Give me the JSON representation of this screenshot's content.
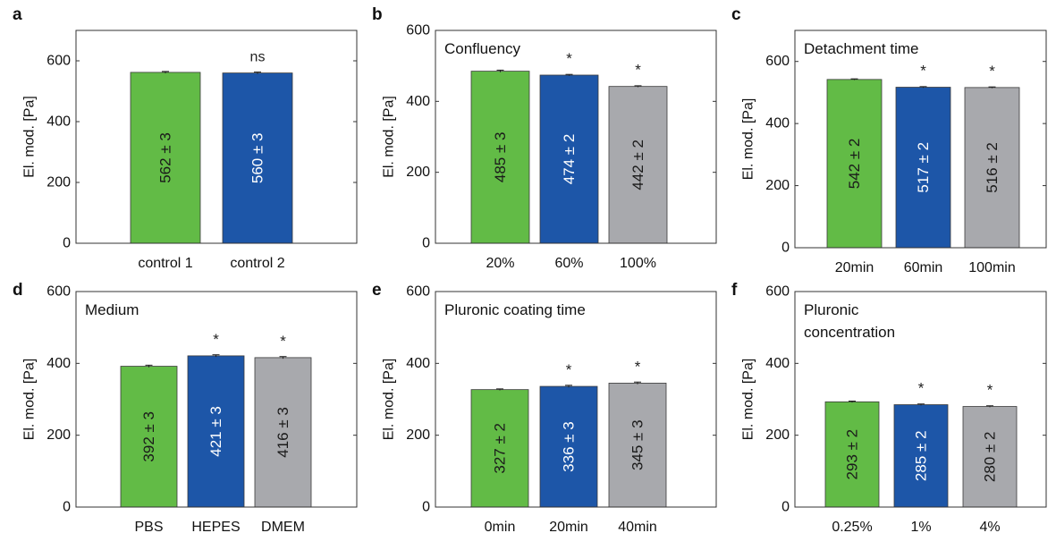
{
  "chart_data": [
    {
      "panel": "a",
      "type": "bar",
      "title": "",
      "ylabel": "El. mod. [Pa]",
      "ylim": [
        0,
        700
      ],
      "yticks": [
        0,
        200,
        400,
        600
      ],
      "categories": [
        "control 1",
        "control 2"
      ],
      "values": [
        562,
        560
      ],
      "errors": [
        3,
        3
      ],
      "value_labels": [
        "562 ± 3",
        "560 ± 3"
      ],
      "annotations": [
        "",
        "ns"
      ],
      "colors": [
        "#62bb46",
        "#1d56a8"
      ]
    },
    {
      "panel": "b",
      "type": "bar",
      "title": "Confluency",
      "ylabel": "El. mod. [Pa]",
      "ylim": [
        0,
        600
      ],
      "yticks": [
        0,
        200,
        400,
        600
      ],
      "categories": [
        "20%",
        "60%",
        "100%"
      ],
      "values": [
        485,
        474,
        442
      ],
      "errors": [
        3,
        2,
        2
      ],
      "value_labels": [
        "485 ± 3",
        "474 ± 2",
        "442 ± 2"
      ],
      "annotations": [
        "",
        "*",
        "*"
      ],
      "colors": [
        "#62bb46",
        "#1d56a8",
        "#a8a9ad"
      ]
    },
    {
      "panel": "c",
      "type": "bar",
      "title": "Detachment time",
      "ylabel": "El. mod. [Pa]",
      "ylim": [
        0,
        700
      ],
      "yticks": [
        0,
        200,
        400,
        600
      ],
      "categories": [
        "20min",
        "60min",
        "100min"
      ],
      "values": [
        542,
        517,
        516
      ],
      "errors": [
        2,
        2,
        2
      ],
      "value_labels": [
        "542 ± 2",
        "517 ± 2",
        "516 ± 2"
      ],
      "annotations": [
        "",
        "*",
        "*"
      ],
      "colors": [
        "#62bb46",
        "#1d56a8",
        "#a8a9ad"
      ]
    },
    {
      "panel": "d",
      "type": "bar",
      "title": "Medium",
      "ylabel": "El. mod. [Pa]",
      "ylim": [
        0,
        600
      ],
      "yticks": [
        0,
        200,
        400,
        600
      ],
      "categories": [
        "PBS",
        "HEPES",
        "DMEM"
      ],
      "values": [
        392,
        421,
        416
      ],
      "errors": [
        3,
        3,
        3
      ],
      "value_labels": [
        "392 ± 3",
        "421 ± 3",
        "416 ± 3"
      ],
      "annotations": [
        "",
        "*",
        "*"
      ],
      "colors": [
        "#62bb46",
        "#1d56a8",
        "#a8a9ad"
      ]
    },
    {
      "panel": "e",
      "type": "bar",
      "title": "Pluronic coating time",
      "ylabel": "El. mod. [Pa]",
      "ylim": [
        0,
        600
      ],
      "yticks": [
        0,
        200,
        400,
        600
      ],
      "categories": [
        "0min",
        "20min",
        "40min"
      ],
      "values": [
        327,
        336,
        345
      ],
      "errors": [
        2,
        3,
        3
      ],
      "value_labels": [
        "327 ± 2",
        "336 ± 3",
        "345 ± 3"
      ],
      "annotations": [
        "",
        "*",
        "*"
      ],
      "colors": [
        "#62bb46",
        "#1d56a8",
        "#a8a9ad"
      ]
    },
    {
      "panel": "f",
      "type": "bar",
      "title": "Pluronic concentration",
      "title_lines": [
        "Pluronic",
        "concentration"
      ],
      "ylabel": "El. mod. [Pa]",
      "ylim": [
        0,
        600
      ],
      "yticks": [
        0,
        200,
        400,
        600
      ],
      "categories": [
        "0.25%",
        "1%",
        "4%"
      ],
      "values": [
        293,
        285,
        280
      ],
      "errors": [
        2,
        2,
        2
      ],
      "value_labels": [
        "293 ± 2",
        "285 ± 2",
        "280 ± 2"
      ],
      "annotations": [
        "",
        "*",
        "*"
      ],
      "colors": [
        "#62bb46",
        "#1d56a8",
        "#a8a9ad"
      ]
    }
  ]
}
